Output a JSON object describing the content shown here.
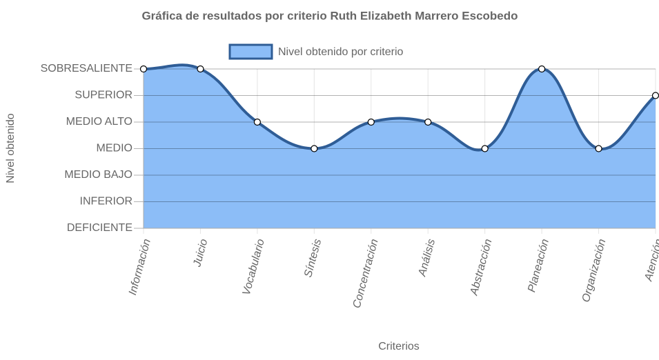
{
  "chart_data": {
    "type": "line",
    "title": "Gráfica de resultados por criterio Ruth Elizabeth Marrero Escobedo",
    "x_label": "Criterios",
    "y_label": "Nivel obtenido",
    "categories": [
      "Información",
      "Juicio",
      "Vocabulario",
      "Síntesis",
      "Concentración",
      "Análisis",
      "Abstracción",
      "Planeación",
      "Organización",
      "Atención"
    ],
    "series": [
      {
        "name": "Nivel obtenido por criterio",
        "color": "#2f5d96",
        "fill": "#8cbdf7",
        "values": [
          7,
          7,
          5,
          4,
          5,
          5,
          4,
          7,
          4,
          6
        ]
      }
    ],
    "ylim": [
      1,
      7
    ],
    "yticks": [
      {
        "value": 1,
        "label": "DEFICIENTE"
      },
      {
        "value": 2,
        "label": "INFERIOR"
      },
      {
        "value": 3,
        "label": "MEDIO BAJO"
      },
      {
        "value": 4,
        "label": "MEDIO"
      },
      {
        "value": 5,
        "label": "MEDIO ALTO"
      },
      {
        "value": 6,
        "label": "SUPERIOR"
      },
      {
        "value": 7,
        "label": "SOBRESALIENTE"
      }
    ],
    "grid": true,
    "legend": "top"
  }
}
